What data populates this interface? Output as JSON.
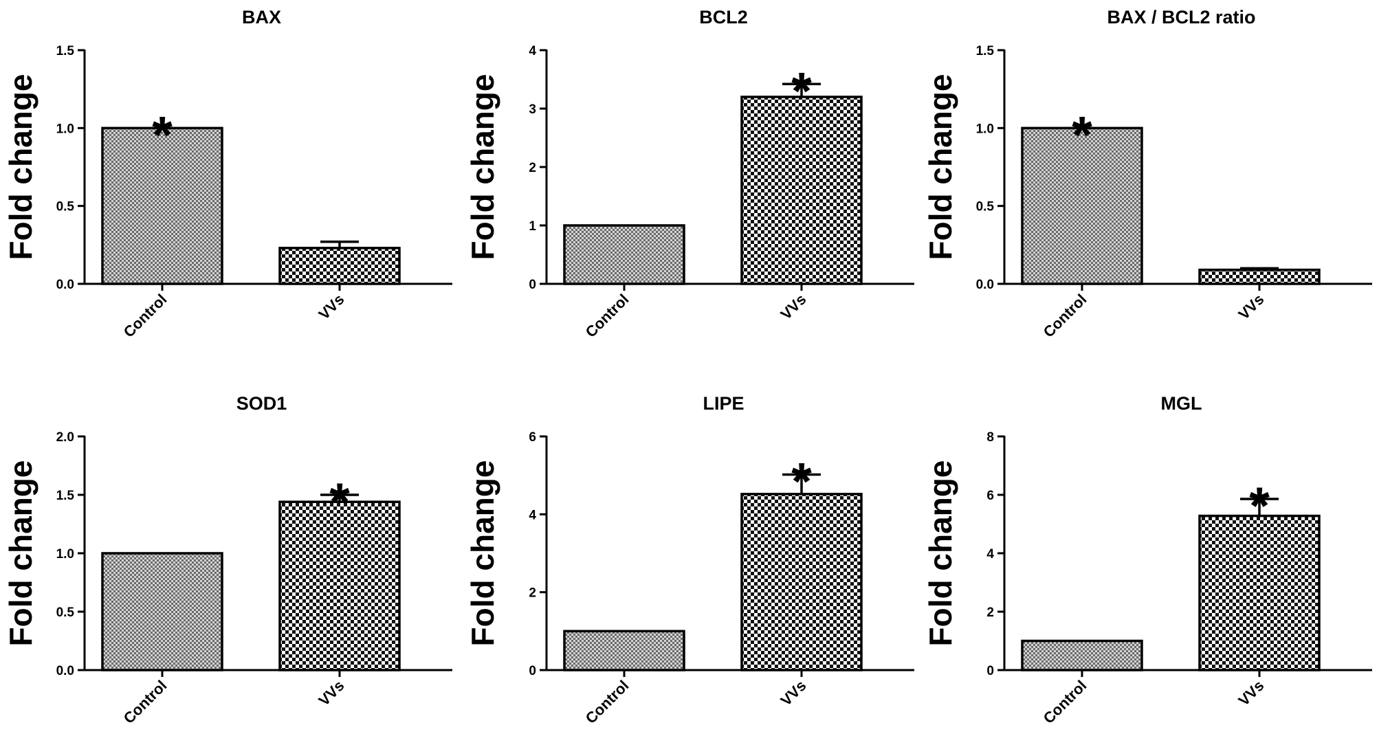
{
  "chart_data": [
    {
      "type": "bar",
      "title": "BAX",
      "ylabel": "Fold change",
      "categories": [
        "Control",
        "VVs"
      ],
      "values": [
        1.0,
        0.23
      ],
      "errors": [
        0,
        0.04
      ],
      "ylim": [
        0,
        1.5
      ],
      "yticks": [
        0.0,
        0.5,
        1.0,
        1.5
      ],
      "ytick_labels": [
        "0.0",
        "0.5",
        "1.0",
        "1.5"
      ],
      "significance": [
        "*",
        ""
      ],
      "fill_patterns": [
        "fine-checker",
        "coarse-checker"
      ],
      "grid": false,
      "legend": "none"
    },
    {
      "type": "bar",
      "title": "BCL2",
      "ylabel": "Fold change",
      "categories": [
        "Control",
        "VVs"
      ],
      "values": [
        1.0,
        3.2
      ],
      "errors": [
        0,
        0.22
      ],
      "ylim": [
        0,
        4
      ],
      "yticks": [
        0,
        1,
        2,
        3,
        4
      ],
      "ytick_labels": [
        "0",
        "1",
        "2",
        "3",
        "4"
      ],
      "significance": [
        "",
        "*"
      ],
      "fill_patterns": [
        "fine-checker",
        "coarse-checker"
      ],
      "grid": false,
      "legend": "none"
    },
    {
      "type": "bar",
      "title": "BAX / BCL2 ratio",
      "ylabel": "Fold change",
      "categories": [
        "Control",
        "VVs"
      ],
      "values": [
        1.0,
        0.09
      ],
      "errors": [
        0,
        0.01
      ],
      "ylim": [
        0,
        1.5
      ],
      "yticks": [
        0.0,
        0.5,
        1.0,
        1.5
      ],
      "ytick_labels": [
        "0.0",
        "0.5",
        "1.0",
        "1.5"
      ],
      "significance": [
        "*",
        ""
      ],
      "fill_patterns": [
        "fine-checker",
        "coarse-checker"
      ],
      "grid": false,
      "legend": "none"
    },
    {
      "type": "bar",
      "title": "SOD1",
      "ylabel": "Fold change",
      "categories": [
        "Control",
        "VVs"
      ],
      "values": [
        1.0,
        1.44
      ],
      "errors": [
        0,
        0.06
      ],
      "ylim": [
        0,
        2.0
      ],
      "yticks": [
        0.0,
        0.5,
        1.0,
        1.5,
        2.0
      ],
      "ytick_labels": [
        "0.0",
        "0.5",
        "1.0",
        "1.5",
        "2.0"
      ],
      "significance": [
        "",
        "*"
      ],
      "fill_patterns": [
        "fine-checker",
        "coarse-checker"
      ],
      "grid": false,
      "legend": "none"
    },
    {
      "type": "bar",
      "title": "LIPE",
      "ylabel": "Fold change",
      "categories": [
        "Control",
        "VVs"
      ],
      "values": [
        1.0,
        4.52
      ],
      "errors": [
        0,
        0.5
      ],
      "ylim": [
        0,
        6
      ],
      "yticks": [
        0,
        2,
        4,
        6
      ],
      "ytick_labels": [
        "0",
        "2",
        "4",
        "6"
      ],
      "significance": [
        "",
        "*"
      ],
      "fill_patterns": [
        "fine-checker",
        "coarse-checker"
      ],
      "grid": false,
      "legend": "none"
    },
    {
      "type": "bar",
      "title": "MGL",
      "ylabel": "Fold change",
      "categories": [
        "Control",
        "VVs"
      ],
      "values": [
        1.0,
        5.28
      ],
      "errors": [
        0,
        0.58
      ],
      "ylim": [
        0,
        8
      ],
      "yticks": [
        0,
        2,
        4,
        6,
        8
      ],
      "ytick_labels": [
        "0",
        "2",
        "4",
        "6",
        "8"
      ],
      "significance": [
        "",
        "*"
      ],
      "fill_patterns": [
        "fine-checker",
        "coarse-checker"
      ],
      "grid": false,
      "legend": "none"
    }
  ]
}
